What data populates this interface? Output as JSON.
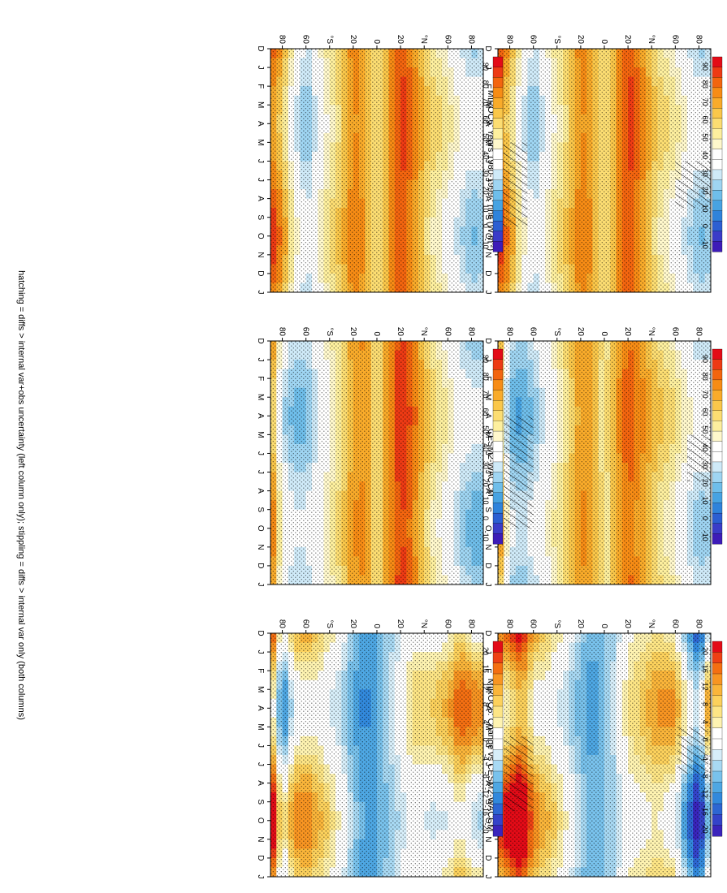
{
  "footer": "hatching = diffs > internal var+obs uncertainty (left column only); stippling = diffs > internal var only (both columns)",
  "months": [
    "D",
    "J",
    "F",
    "M",
    "A",
    "M",
    "J",
    "J",
    "A",
    "S",
    "O",
    "N",
    "D",
    "J"
  ],
  "lat_labels": [
    "80",
    "60",
    "°N",
    "20",
    "0",
    "20",
    "°S",
    "60",
    "80"
  ],
  "palettes": {
    "abs": [
      "#e30b17",
      "#ed3a14",
      "#f3650f",
      "#f78c15",
      "#f9ab2a",
      "#fac74a",
      "#fcdd72",
      "#fdef9e",
      "#fff8cc",
      "#ffffff",
      "#ffffff",
      "#cfeaf8",
      "#9fd5f2",
      "#6fbeea",
      "#47a3e2",
      "#2f83db",
      "#2c5fd2",
      "#3a3cc8",
      "#3d1cb8"
    ],
    "diff": [
      "#e30b17",
      "#ee4015",
      "#f46f12",
      "#f89522",
      "#fab53a",
      "#fcd15c",
      "#fde585",
      "#fef3b1",
      "#ffffff",
      "#ffffff",
      "#d7eef9",
      "#a8d9f3",
      "#79c2ec",
      "#4ea7e3",
      "#3289dc",
      "#2d66d2",
      "#3443c9",
      "#3a24bb"
    ]
  },
  "panels": {
    "p11": {
      "title": "MIROC6: Years 1980-1999 : rlns (W m",
      "units_sup": "-2",
      "units_close": ")"
    },
    "p12": {
      "title": "MIROC6: Years 1980-1999 : rlns (W m",
      "units_sup": "-2",
      "units_close": ")"
    },
    "p21": {
      "title": "EBAF4.1 2001-2017 Uncer=15 W/m2"
    },
    "p22": {
      "title": "CESM2-WACCM"
    },
    "p31": {
      "title": "MIROC6: Bias vs EBAF4.1 2001-2017"
    },
    "p32": {
      "title": "MIROC6: Change vs CESM2-WACCM"
    }
  },
  "colorbars": {
    "cb1": {
      "palette": "abs",
      "labels": [
        "90",
        "80",
        "70",
        "60",
        "50",
        "40",
        "30",
        "20",
        "10",
        "0",
        "-10"
      ]
    },
    "cb2": {
      "palette": "abs",
      "labels": [
        "90",
        "80",
        "70",
        "60",
        "50",
        "40",
        "30",
        "20",
        "10",
        "0",
        "-10"
      ]
    },
    "cb3": {
      "palette": "diff",
      "labels": [
        "20",
        "16",
        "12",
        "8",
        "4",
        "0",
        "-4",
        "-8",
        "-12",
        "-16",
        "-20"
      ]
    },
    "cb4": {
      "palette": "abs",
      "labels": [
        "90",
        "80",
        "70",
        "60",
        "50",
        "40",
        "30",
        "20",
        "10",
        "0",
        "-10"
      ]
    },
    "cb5": {
      "palette": "abs",
      "labels": [
        "90",
        "80",
        "70",
        "60",
        "50",
        "40",
        "30",
        "20",
        "10",
        "0",
        "-10"
      ]
    },
    "cb6": {
      "palette": "diff",
      "labels": [
        "20",
        "16",
        "12",
        "8",
        "4",
        "0",
        "-4",
        "-8",
        "-12",
        "-16",
        "-20"
      ]
    }
  },
  "chart_data": [
    {
      "panel": "p11",
      "type": "heatmap",
      "title": "MIROC6: Years 1980-1999 : rlns (W m-2)",
      "x": "month (D..J)",
      "y": "latitude 90N..90S",
      "colorbar": "cb1",
      "profile": {
        "lat": [
          90,
          80,
          70,
          60,
          45,
          30,
          20,
          10,
          0,
          -10,
          -20,
          -30,
          -45,
          -60,
          -70,
          -80,
          -90
        ],
        "values": [
          30,
          28,
          35,
          45,
          55,
          75,
          85,
          70,
          50,
          70,
          75,
          60,
          45,
          25,
          40,
          65,
          80
        ]
      },
      "hatch": [
        {
          "lat": [
            90,
            60
          ],
          "month": [
            6,
            8.5
          ]
        },
        {
          "lat": [
            -65,
            -90
          ],
          "month": [
            5,
            9.5
          ]
        }
      ]
    },
    {
      "panel": "p12",
      "type": "heatmap",
      "title": "MIROC6: Years 1980-1999 : rlns (W m-2)",
      "x": "month (D..J)",
      "y": "latitude 90N..90S",
      "colorbar": "cb4",
      "profile": {
        "lat": [
          90,
          80,
          70,
          60,
          45,
          30,
          20,
          10,
          0,
          -10,
          -20,
          -30,
          -45,
          -60,
          -70,
          -80,
          -90
        ],
        "values": [
          30,
          28,
          35,
          45,
          55,
          75,
          85,
          70,
          50,
          70,
          75,
          60,
          45,
          25,
          40,
          65,
          80
        ]
      }
    },
    {
      "panel": "p21",
      "type": "heatmap",
      "title": "EBAF4.1 2001-2017 Uncer=15 W/m2",
      "x": "month (D..J)",
      "y": "latitude 90N..90S",
      "colorbar": "cb2",
      "profile": {
        "lat": [
          90,
          80,
          70,
          60,
          45,
          30,
          20,
          10,
          0,
          -10,
          -20,
          -30,
          -45,
          -60,
          -70,
          -80,
          -90
        ],
        "values": [
          32,
          30,
          38,
          48,
          58,
          72,
          80,
          68,
          50,
          68,
          72,
          58,
          42,
          28,
          20,
          25,
          70
        ]
      },
      "hatch": [
        {
          "lat": [
            90,
            70
          ],
          "month": [
            5,
            7.5
          ]
        },
        {
          "lat": [
            -60,
            -85
          ],
          "month": [
            4,
            10
          ]
        }
      ]
    },
    {
      "panel": "p22",
      "type": "heatmap",
      "title": "CESM2-WACCM",
      "x": "month (D..J)",
      "y": "latitude 90N..90S",
      "colorbar": "cb5",
      "profile": {
        "lat": [
          90,
          80,
          70,
          60,
          45,
          30,
          20,
          10,
          0,
          -10,
          -20,
          -30,
          -45,
          -60,
          -70,
          -80,
          -90
        ],
        "values": [
          25,
          25,
          32,
          42,
          55,
          78,
          88,
          72,
          52,
          72,
          70,
          55,
          40,
          25,
          25,
          35,
          75
        ]
      }
    },
    {
      "panel": "p31",
      "type": "heatmap",
      "title": "MIROC6: Bias vs EBAF4.1 2001-2017",
      "x": "month (D..J)",
      "y": "latitude 90N..90S",
      "colorbar": "cb3",
      "profile": {
        "lat": [
          90,
          80,
          70,
          60,
          45,
          30,
          20,
          10,
          0,
          -10,
          -20,
          -30,
          -45,
          -60,
          -70,
          -80,
          -90
        ],
        "values": [
          6,
          -14,
          -6,
          6,
          8,
          4,
          3,
          -4,
          -8,
          -10,
          -7,
          -2,
          4,
          8,
          18,
          14,
          8
        ]
      },
      "hatch": [
        {
          "lat": [
            88,
            62
          ],
          "month": [
            5,
            7.5
          ]
        },
        {
          "lat": [
            -60,
            -85
          ],
          "month": [
            5.5,
            9.5
          ]
        }
      ]
    },
    {
      "panel": "p32",
      "type": "heatmap",
      "title": "MIROC6: Change vs CESM2-WACCM",
      "x": "month (D..J)",
      "y": "latitude 90N..90S",
      "colorbar": "cb6",
      "profile": {
        "lat": [
          90,
          80,
          70,
          60,
          45,
          30,
          20,
          10,
          0,
          -10,
          -20,
          -30,
          -45,
          -60,
          -70,
          -80,
          -90
        ],
        "values": [
          4,
          6,
          10,
          4,
          2,
          3,
          -2,
          -6,
          -10,
          -12,
          -8,
          -2,
          4,
          8,
          6,
          -6,
          18
        ]
      }
    }
  ]
}
